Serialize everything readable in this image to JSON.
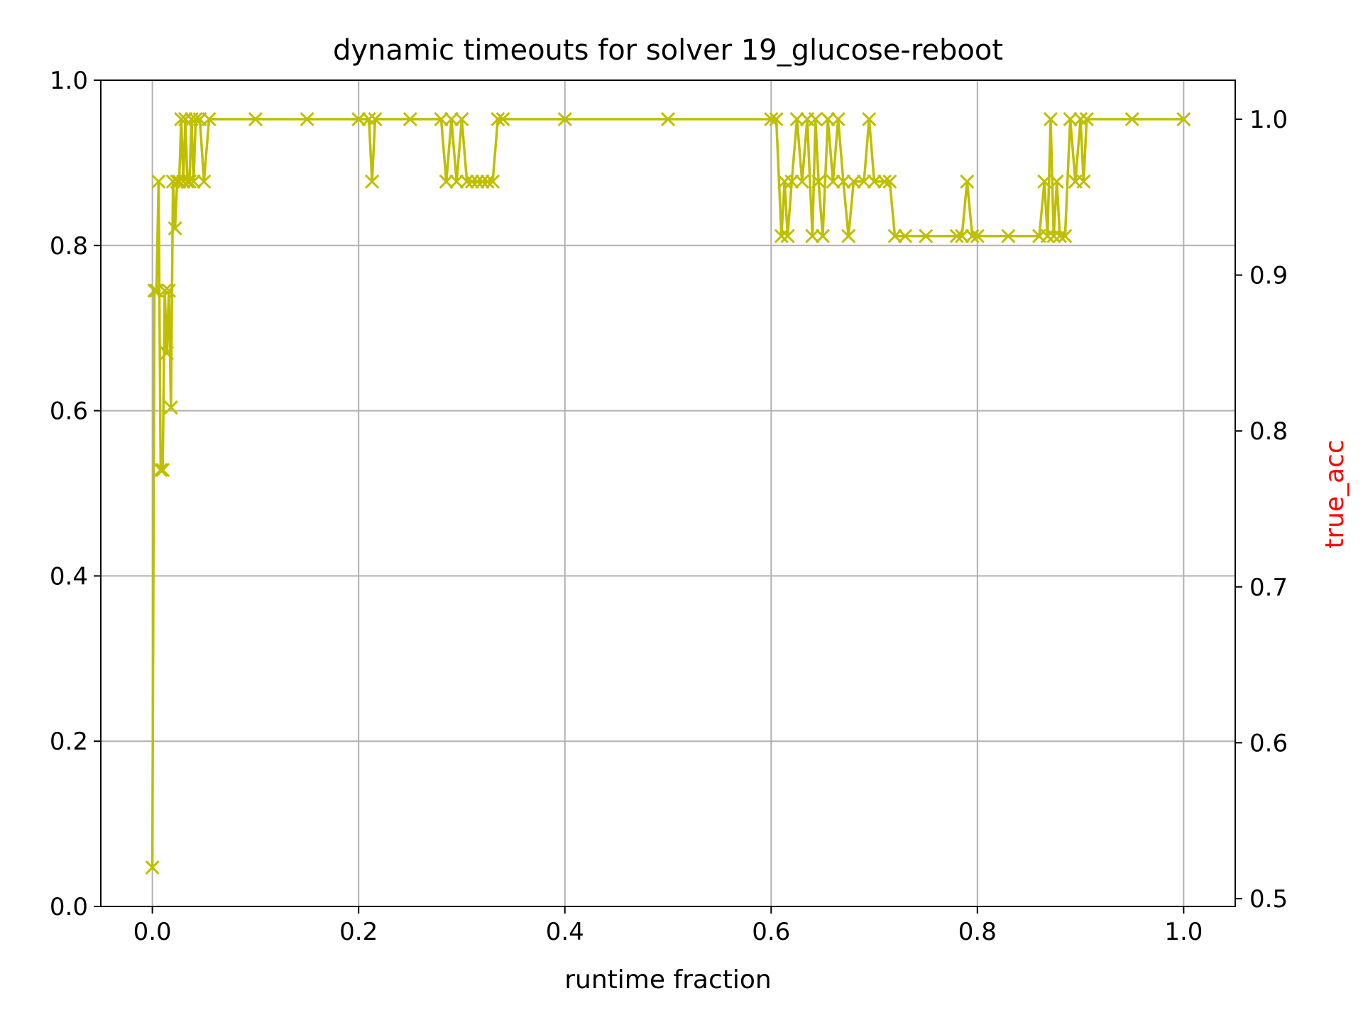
{
  "chart_data": {
    "type": "line",
    "title": "dynamic timeouts for solver 19_glucose-reboot",
    "xlabel": "runtime fraction",
    "ylabel": "",
    "y2label": "true_acc",
    "xlim": [
      -0.05,
      1.05
    ],
    "ylim": [
      0.0,
      1.0
    ],
    "y2lim": [
      0.495,
      1.025
    ],
    "xticks": [
      "0.0",
      "0.2",
      "0.4",
      "0.6",
      "0.8",
      "1.0"
    ],
    "yticks": [
      "0.0",
      "0.2",
      "0.4",
      "0.6",
      "0.8",
      "1.0"
    ],
    "y2ticks": [
      "0.5",
      "0.6",
      "0.7",
      "0.8",
      "0.9",
      "1.0"
    ],
    "grid": true,
    "colors": {
      "series": "#bfbf00",
      "y2label": "#ff0000",
      "grid": "#b0b0b0",
      "axes": "#000000"
    },
    "series": [
      {
        "axis": "right",
        "marker": "x",
        "x": [
          0.0,
          0.002,
          0.004,
          0.006,
          0.008,
          0.01,
          0.012,
          0.014,
          0.016,
          0.018,
          0.02,
          0.022,
          0.024,
          0.026,
          0.028,
          0.03,
          0.032,
          0.034,
          0.036,
          0.038,
          0.04,
          0.042,
          0.046,
          0.05,
          0.055,
          0.1,
          0.15,
          0.2,
          0.21,
          0.213,
          0.216,
          0.25,
          0.28,
          0.285,
          0.29,
          0.295,
          0.3,
          0.305,
          0.31,
          0.315,
          0.32,
          0.325,
          0.33,
          0.335,
          0.34,
          0.4,
          0.5,
          0.6,
          0.605,
          0.61,
          0.613,
          0.616,
          0.62,
          0.625,
          0.63,
          0.635,
          0.64,
          0.643,
          0.646,
          0.65,
          0.655,
          0.66,
          0.665,
          0.67,
          0.675,
          0.68,
          0.69,
          0.695,
          0.7,
          0.71,
          0.715,
          0.72,
          0.73,
          0.75,
          0.78,
          0.785,
          0.79,
          0.795,
          0.8,
          0.83,
          0.86,
          0.865,
          0.868,
          0.871,
          0.874,
          0.877,
          0.88,
          0.885,
          0.89,
          0.895,
          0.9,
          0.903,
          0.906,
          0.95,
          1.0
        ],
        "y": [
          0.52,
          0.89,
          0.89,
          0.96,
          0.775,
          0.775,
          0.89,
          0.85,
          0.89,
          0.815,
          0.96,
          0.93,
          0.96,
          0.96,
          1.0,
          0.96,
          1.0,
          0.96,
          0.96,
          1.0,
          0.96,
          1.0,
          1.0,
          0.96,
          1.0,
          1.0,
          1.0,
          1.0,
          1.0,
          0.96,
          1.0,
          1.0,
          1.0,
          0.96,
          1.0,
          0.96,
          1.0,
          0.96,
          0.96,
          0.96,
          0.96,
          0.96,
          0.96,
          1.0,
          1.0,
          1.0,
          1.0,
          1.0,
          1.0,
          0.925,
          0.96,
          0.925,
          0.96,
          1.0,
          0.96,
          1.0,
          0.925,
          1.0,
          0.96,
          0.925,
          1.0,
          0.96,
          1.0,
          0.96,
          0.925,
          0.96,
          0.96,
          1.0,
          0.96,
          0.96,
          0.96,
          0.925,
          0.925,
          0.925,
          0.925,
          0.925,
          0.96,
          0.925,
          0.925,
          0.925,
          0.925,
          0.96,
          0.925,
          1.0,
          0.925,
          0.96,
          0.925,
          0.925,
          1.0,
          0.96,
          1.0,
          0.96,
          1.0,
          1.0,
          1.0
        ]
      }
    ]
  }
}
